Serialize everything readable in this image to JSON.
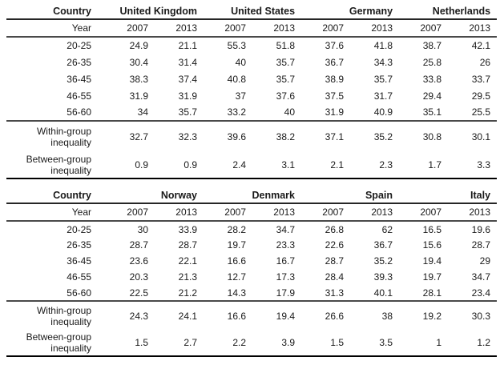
{
  "chart_data": [
    {
      "type": "table",
      "header_label": "Country",
      "year_label": "Year",
      "countries": [
        "United Kingdom",
        "United States",
        "Germany",
        "Netherlands"
      ],
      "years": [
        "2007",
        "2013",
        "2007",
        "2013",
        "2007",
        "2013",
        "2007",
        "2013"
      ],
      "rows": [
        {
          "label": "20-25",
          "values": [
            "24.9",
            "21.1",
            "55.3",
            "51.8",
            "37.6",
            "41.8",
            "38.7",
            "42.1"
          ]
        },
        {
          "label": "26-35",
          "values": [
            "30.4",
            "31.4",
            "40",
            "35.7",
            "36.7",
            "34.3",
            "25.8",
            "26"
          ]
        },
        {
          "label": "36-45",
          "values": [
            "38.3",
            "37.4",
            "40.8",
            "35.7",
            "38.9",
            "35.7",
            "33.8",
            "33.7"
          ]
        },
        {
          "label": "46-55",
          "values": [
            "31.9",
            "31.9",
            "37",
            "37.6",
            "37.5",
            "31.7",
            "29.4",
            "29.5"
          ]
        },
        {
          "label": "56-60",
          "values": [
            "34",
            "35.7",
            "33.2",
            "40",
            "31.9",
            "40.9",
            "35.1",
            "25.5"
          ]
        }
      ],
      "summary_rows": [
        {
          "label": "Within-group inequality",
          "values": [
            "32.7",
            "32.3",
            "39.6",
            "38.2",
            "37.1",
            "35.2",
            "30.8",
            "30.1"
          ]
        },
        {
          "label": "Between-group inequality",
          "values": [
            "0.9",
            "0.9",
            "2.4",
            "3.1",
            "2.1",
            "2.3",
            "1.7",
            "3.3"
          ]
        }
      ]
    },
    {
      "type": "table",
      "header_label": "Country",
      "year_label": "Year",
      "countries": [
        "Norway",
        "Denmark",
        "Spain",
        "Italy"
      ],
      "years": [
        "2007",
        "2013",
        "2007",
        "2013",
        "2007",
        "2013",
        "2007",
        "2013"
      ],
      "rows": [
        {
          "label": "20-25",
          "values": [
            "30",
            "33.9",
            "28.2",
            "34.7",
            "26.8",
            "62",
            "16.5",
            "19.6"
          ]
        },
        {
          "label": "26-35",
          "values": [
            "28.7",
            "28.7",
            "19.7",
            "23.3",
            "22.6",
            "36.7",
            "15.6",
            "28.7"
          ]
        },
        {
          "label": "36-45",
          "values": [
            "23.6",
            "22.1",
            "16.6",
            "16.7",
            "28.7",
            "35.2",
            "19.4",
            "29"
          ]
        },
        {
          "label": "46-55",
          "values": [
            "20.3",
            "21.3",
            "12.7",
            "17.3",
            "28.4",
            "39.3",
            "19.7",
            "34.7"
          ]
        },
        {
          "label": "56-60",
          "values": [
            "22.5",
            "21.2",
            "14.3",
            "17.9",
            "31.3",
            "40.1",
            "28.1",
            "23.4"
          ]
        }
      ],
      "summary_rows": [
        {
          "label": "Within-group inequality",
          "values": [
            "24.3",
            "24.1",
            "16.6",
            "19.4",
            "26.6",
            "38",
            "19.2",
            "30.3"
          ]
        },
        {
          "label": "Between-group inequality",
          "values": [
            "1.5",
            "2.7",
            "2.2",
            "3.9",
            "1.5",
            "3.5",
            "1",
            "1.2"
          ]
        }
      ]
    }
  ],
  "colors": {
    "background": "#ffffff",
    "text": "#1a1a1a",
    "inner_rule": "#4a4a4a",
    "header_rule": "#262626",
    "heavy_rule": "#000000"
  }
}
